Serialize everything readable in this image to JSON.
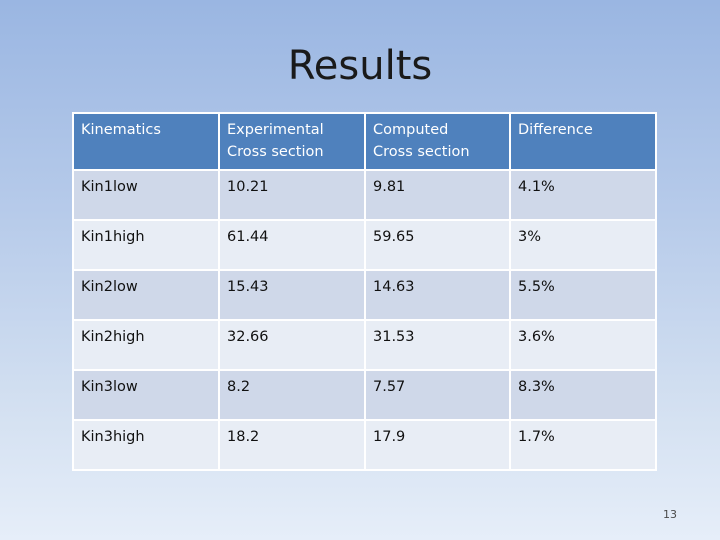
{
  "slide": {
    "title": "Results",
    "page_number": "13"
  },
  "table": {
    "headers": [
      [
        "Kinematics"
      ],
      [
        "Experimental",
        "Cross section"
      ],
      [
        "Computed",
        "Cross section"
      ],
      [
        "Difference"
      ]
    ],
    "rows": [
      [
        "Kin1low",
        "10.21",
        "9.81",
        "4.1%"
      ],
      [
        "Kin1high",
        "61.44",
        "59.65",
        "3%"
      ],
      [
        "Kin2low",
        "15.43",
        "14.63",
        "5.5%"
      ],
      [
        "Kin2high",
        "32.66",
        "31.53",
        "3.6%"
      ],
      [
        "Kin3low",
        "8.2",
        "7.57",
        "8.3%"
      ],
      [
        "Kin3high",
        "18.2",
        "17.9",
        "1.7%"
      ]
    ]
  },
  "colors": {
    "header_fill": "#4f81bd",
    "row_fill_a": "#cfd8e9",
    "row_fill_b": "#e8edf5"
  }
}
